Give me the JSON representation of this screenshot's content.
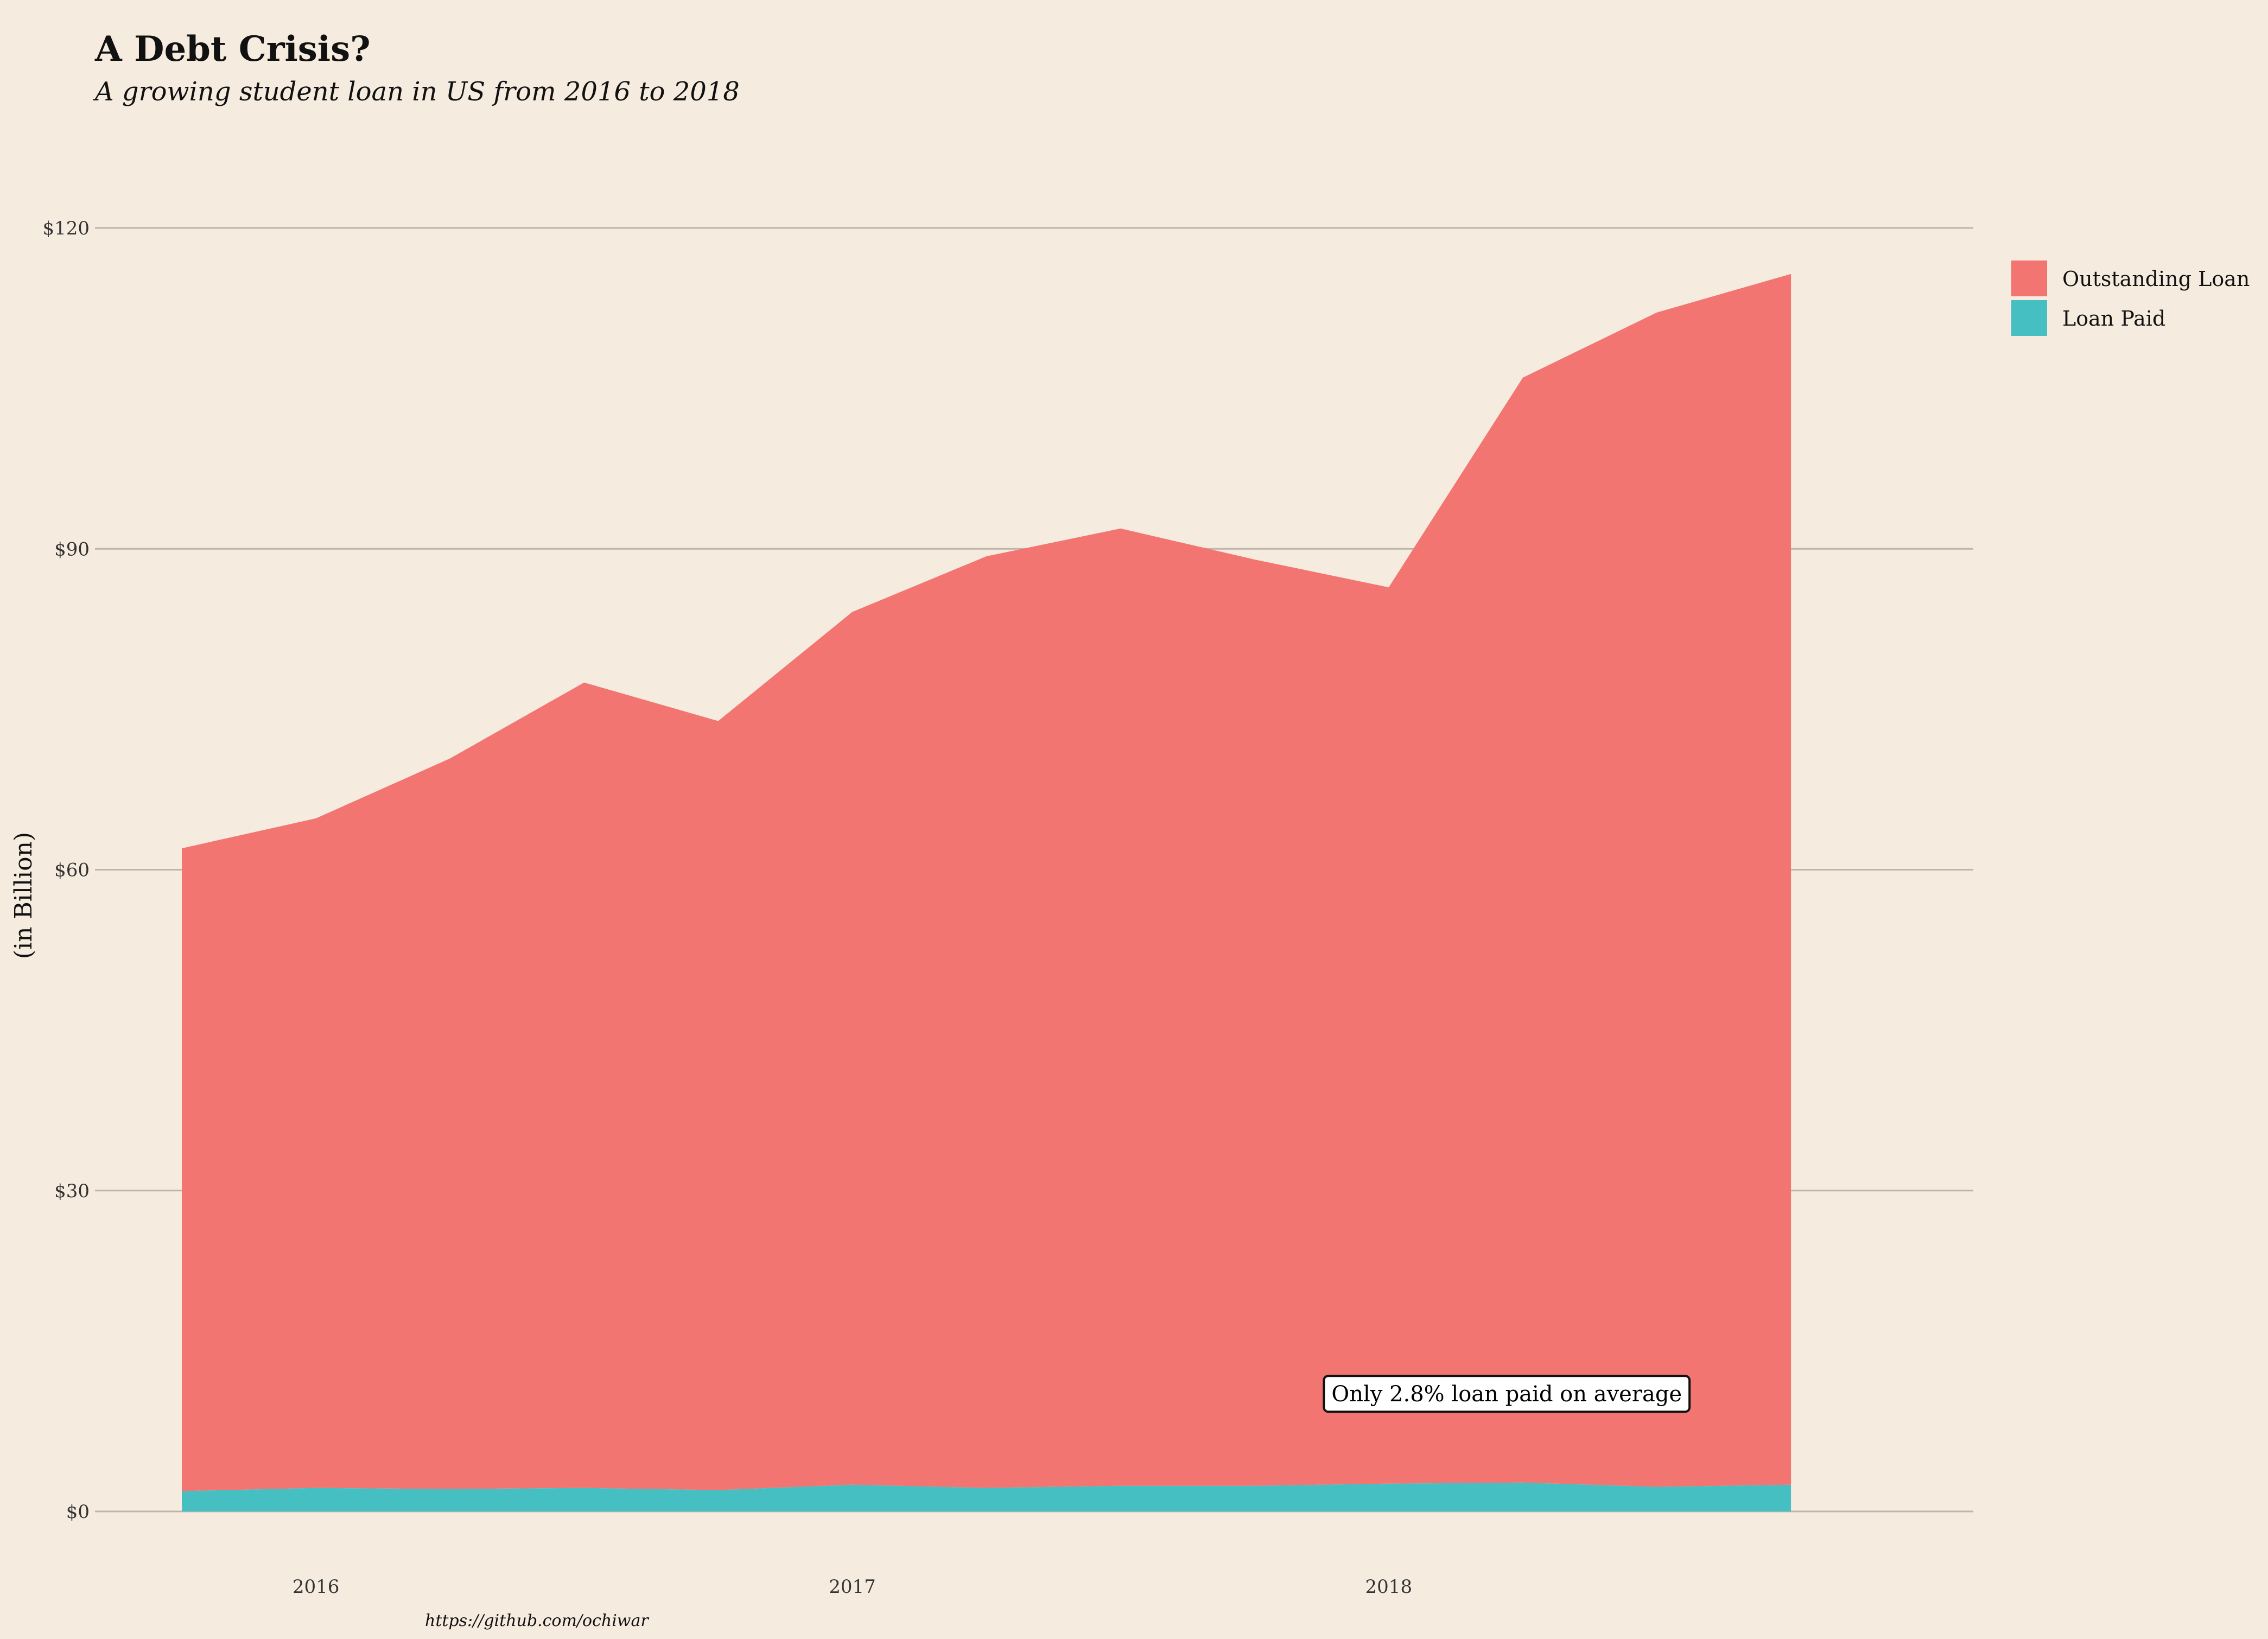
{
  "chart_data": {
    "type": "area",
    "title": "A Debt Crisis?",
    "subtitle": "A growing student loan in US from 2016 to 2018",
    "ylabel": "(in Billion)",
    "xlabel": "",
    "caption": "https://github.com/ochiwar",
    "annotation": {
      "text": "Only 2.8% loan paid on average",
      "x": 2018.22,
      "y": 11
    },
    "ylim": [
      0,
      120
    ],
    "xlim": [
      2015.75,
      2018.93
    ],
    "yticks": [
      0,
      30,
      60,
      90,
      120
    ],
    "ytick_labels": [
      "$0",
      "$30",
      "$60",
      "$90",
      "$120"
    ],
    "xticks": [
      2016,
      2017,
      2018
    ],
    "xtick_labels": [
      "2016",
      "2017",
      "2018"
    ],
    "grid": true,
    "legend_position": "right",
    "stacked": true,
    "x": [
      2015.75,
      2016.0,
      2016.25,
      2016.5,
      2016.75,
      2017.0,
      2017.25,
      2017.5,
      2017.75,
      2018.0,
      2018.25,
      2018.5,
      2018.75
    ],
    "series": [
      {
        "name": "Outstanding Loan",
        "color": "#f37572",
        "values": [
          60.1,
          62.6,
          68.3,
          75.3,
          71.9,
          81.6,
          87.1,
          89.5,
          86.6,
          83.8,
          103.3,
          109.8,
          113.2
        ]
      },
      {
        "name": "Loan Paid",
        "color": "#45bfc2",
        "values": [
          1.9,
          2.2,
          2.1,
          2.2,
          2.0,
          2.5,
          2.2,
          2.4,
          2.4,
          2.6,
          2.7,
          2.3,
          2.5
        ]
      }
    ]
  }
}
